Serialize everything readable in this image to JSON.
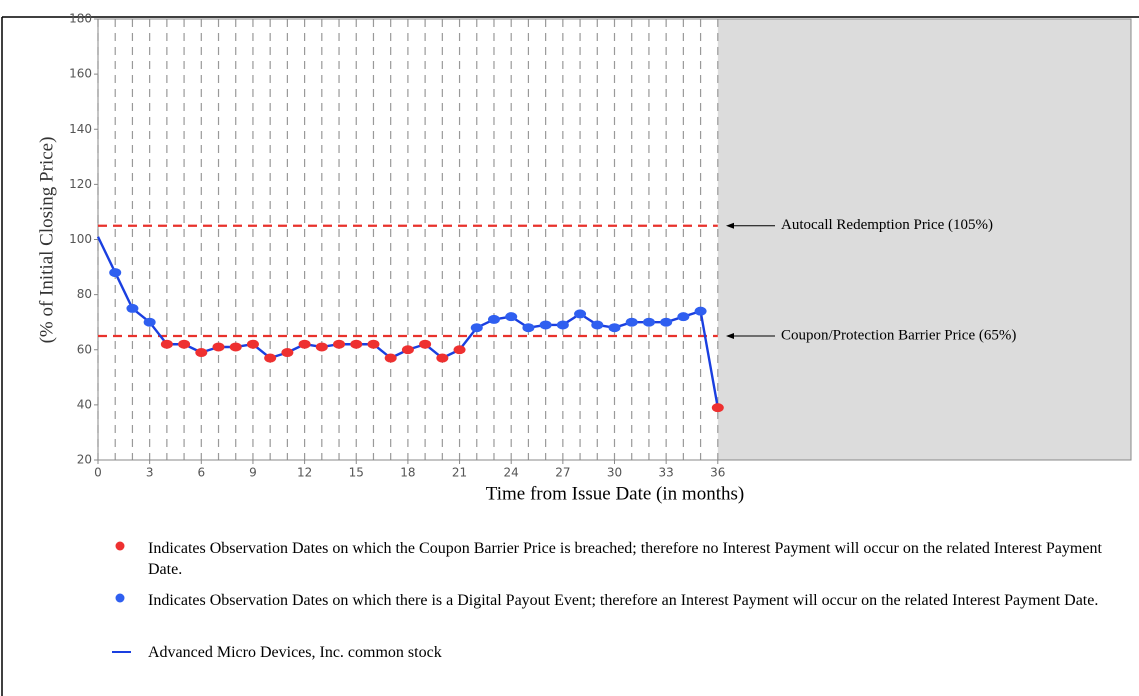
{
  "chart_data": {
    "type": "line",
    "x": [
      0,
      1,
      2,
      3,
      4,
      5,
      6,
      7,
      8,
      9,
      10,
      11,
      12,
      13,
      14,
      15,
      16,
      17,
      18,
      19,
      20,
      21,
      22,
      23,
      24,
      25,
      26,
      27,
      28,
      29,
      30,
      31,
      32,
      33,
      34,
      35,
      36
    ],
    "series": [
      {
        "name": "Advanced Micro Devices, Inc. common stock",
        "color": "#1a3fe0",
        "values": [
          101,
          88,
          75,
          70,
          62,
          62,
          59,
          61,
          61,
          62,
          57,
          59,
          62,
          61,
          62,
          62,
          62,
          57,
          60,
          62,
          57,
          60,
          68,
          71,
          72,
          68,
          69,
          69,
          73,
          69,
          68,
          70,
          70,
          70,
          72,
          74,
          39
        ]
      }
    ],
    "marker_color": "#2f5ff0",
    "breach_color": "#ee3030",
    "xlim": [
      0,
      60
    ],
    "xticks": [
      0,
      3,
      6,
      9,
      12,
      15,
      18,
      21,
      24,
      27,
      30,
      33,
      36
    ],
    "ylim": [
      20,
      180
    ],
    "yticks": [
      20,
      40,
      60,
      80,
      100,
      120,
      140,
      160,
      180
    ],
    "xlabel": "Time from Issue Date (in months)",
    "ylabel": "(% of Initial Closing Price)",
    "reference_lines": [
      {
        "value": 105,
        "label": "Autocall Redemption Price (105%)"
      },
      {
        "value": 65,
        "label": "Coupon/Protection Barrier Price (65%)"
      }
    ],
    "notes": [
      "Indicates Observation Dates on which the Coupon Barrier Price is breached; therefore no Interest Payment will occur on the related Interest Payment Date.",
      "Indicates Observation Dates on which there is a Digital Payout Event; therefore an Interest Payment will occur on the related Interest Payment Date."
    ]
  }
}
